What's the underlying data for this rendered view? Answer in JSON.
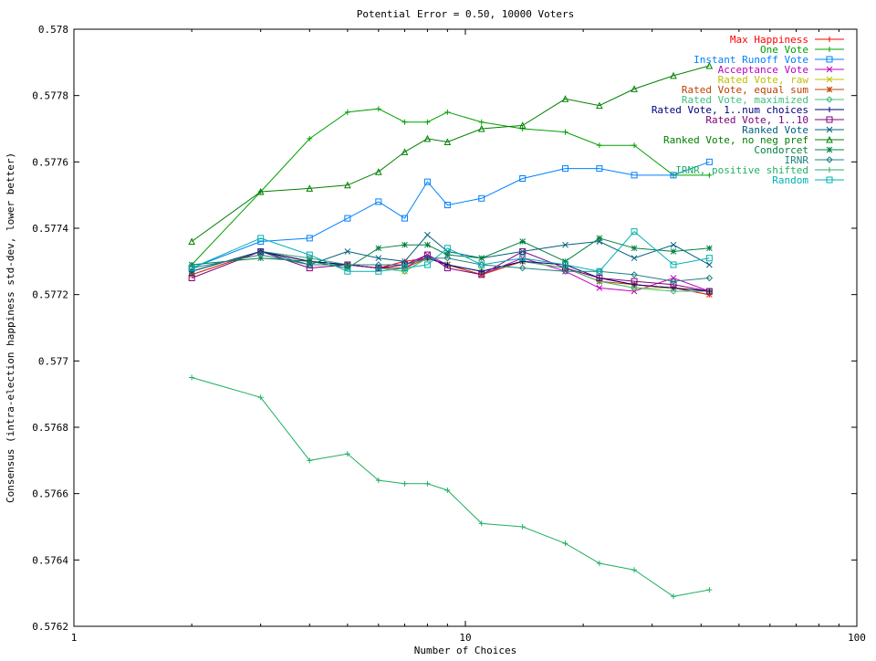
{
  "chart_data": {
    "type": "line",
    "title": "Potential Error = 0.50, 10000 Voters",
    "xlabel": "Number of Choices",
    "ylabel": "Consensus (intra-election happiness std-dev, lower better)",
    "xscale": "log",
    "xlim": [
      1,
      100
    ],
    "ylim": [
      0.5762,
      0.578
    ],
    "xticks": [
      1,
      10,
      100
    ],
    "xtick_labels": [
      "1",
      "10",
      "100"
    ],
    "yticks": [
      0.5762,
      0.5764,
      0.5766,
      0.5768,
      0.577,
      0.5772,
      0.5774,
      0.5776,
      0.5778,
      0.578
    ],
    "ytick_labels": [
      "0.5762",
      "0.5764",
      "0.5766",
      "0.5768",
      "0.577",
      "0.5772",
      "0.5774",
      "0.5776",
      "0.5778",
      "0.578"
    ],
    "grid": false,
    "legend_position": "top-right",
    "x": [
      2,
      3,
      4,
      5,
      6,
      7,
      8,
      9,
      11,
      14,
      18,
      22,
      27,
      34,
      42
    ],
    "series": [
      {
        "name": "Max Happiness",
        "color": "#ff0000",
        "marker": "plus",
        "values": [
          0.57726,
          0.57733,
          0.5773,
          0.57729,
          0.57728,
          0.5773,
          0.57731,
          0.57729,
          0.57726,
          0.5773,
          0.57728,
          0.57725,
          0.57723,
          0.57722,
          0.5772
        ]
      },
      {
        "name": "One Vote",
        "color": "#00a000",
        "marker": "plus",
        "values": [
          0.57729,
          0.57751,
          0.57767,
          0.57775,
          0.57776,
          0.57772,
          0.57772,
          0.57775,
          0.57772,
          0.5777,
          0.57769,
          0.57765,
          0.57765,
          0.57756,
          0.57756
        ]
      },
      {
        "name": "Instant Runoff Vote",
        "color": "#0080ff",
        "marker": "square",
        "values": [
          0.57728,
          0.57736,
          0.57737,
          0.57743,
          0.57748,
          0.57743,
          0.57754,
          0.57747,
          0.57749,
          0.57755,
          0.57758,
          0.57758,
          0.57756,
          0.57756,
          0.5776
        ]
      },
      {
        "name": "Acceptance Vote",
        "color": "#c000c0",
        "marker": "cross",
        "values": [
          0.57727,
          0.57733,
          0.57731,
          0.57729,
          0.57728,
          0.57728,
          0.57732,
          0.57729,
          0.57726,
          0.57731,
          0.57727,
          0.57722,
          0.57721,
          0.57725,
          0.57721
        ]
      },
      {
        "name": "Rated Vote, raw",
        "color": "#c0c000",
        "marker": "cross",
        "values": [
          0.57727,
          0.57733,
          0.5773,
          0.57729,
          0.57728,
          0.57727,
          0.57731,
          0.57729,
          0.57727,
          0.5773,
          0.57728,
          0.57724,
          0.57722,
          0.57722,
          0.57721
        ]
      },
      {
        "name": "Rated Vote, equal sum",
        "color": "#c04000",
        "marker": "star",
        "values": [
          0.57726,
          0.57733,
          0.5773,
          0.57729,
          0.57728,
          0.57728,
          0.57731,
          0.57729,
          0.57726,
          0.5773,
          0.57728,
          0.57724,
          0.57723,
          0.57722,
          0.5772
        ]
      },
      {
        "name": "Rated Vote, maximized",
        "color": "#40c080",
        "marker": "diamond",
        "values": [
          0.57727,
          0.57733,
          0.57731,
          0.57729,
          0.57728,
          0.57727,
          0.57731,
          0.57729,
          0.57727,
          0.5773,
          0.57728,
          0.57724,
          0.57722,
          0.57721,
          0.57721
        ]
      },
      {
        "name": "Rated Vote, 1..num choices",
        "color": "#000080",
        "marker": "plus",
        "values": [
          0.57727,
          0.57733,
          0.5773,
          0.57729,
          0.57728,
          0.57729,
          0.57731,
          0.57729,
          0.57727,
          0.5773,
          0.57729,
          0.57725,
          0.57723,
          0.57722,
          0.57721
        ]
      },
      {
        "name": "Rated Vote, 1..10",
        "color": "#800080",
        "marker": "square",
        "values": [
          0.57725,
          0.57733,
          0.57728,
          0.57729,
          0.57728,
          0.57729,
          0.57732,
          0.57728,
          0.57726,
          0.57733,
          0.57728,
          0.57725,
          0.57724,
          0.57723,
          0.57721
        ]
      },
      {
        "name": "Ranked Vote",
        "color": "#006080",
        "marker": "cross",
        "values": [
          0.57727,
          0.57733,
          0.57729,
          0.57733,
          0.57731,
          0.5773,
          0.57738,
          0.57733,
          0.57731,
          0.57733,
          0.57735,
          0.57736,
          0.57731,
          0.57735,
          0.57729
        ]
      },
      {
        "name": "Ranked Vote, no neg pref",
        "color": "#008000",
        "marker": "triangle",
        "values": [
          0.57736,
          0.57751,
          0.57752,
          0.57753,
          0.57757,
          0.57763,
          0.57767,
          0.57766,
          0.5777,
          0.57771,
          0.57779,
          0.57777,
          0.57782,
          0.57786,
          0.57789
        ]
      },
      {
        "name": "Condorcet",
        "color": "#008040",
        "marker": "star",
        "values": [
          0.57729,
          0.57731,
          0.5773,
          0.57728,
          0.57734,
          0.57735,
          0.57735,
          0.57732,
          0.57731,
          0.57736,
          0.5773,
          0.57737,
          0.57734,
          0.57733,
          0.57734
        ]
      },
      {
        "name": "IRNR",
        "color": "#208080",
        "marker": "diamond",
        "values": [
          0.57728,
          0.57732,
          0.57729,
          0.57729,
          0.57729,
          0.57729,
          0.57731,
          0.57731,
          0.57729,
          0.57728,
          0.57727,
          0.57727,
          0.57726,
          0.57724,
          0.57725
        ]
      },
      {
        "name": "IRNR, positive shifted",
        "color": "#20b060",
        "marker": "plus",
        "values": [
          0.57695,
          0.57689,
          0.5767,
          0.57672,
          0.57664,
          0.57663,
          0.57663,
          0.57661,
          0.57651,
          0.5765,
          0.57645,
          0.57639,
          0.57637,
          0.57629,
          0.57631
        ]
      },
      {
        "name": "Random",
        "color": "#00b0b0",
        "marker": "square",
        "values": [
          0.57728,
          0.57737,
          0.57732,
          0.57727,
          0.57727,
          0.57728,
          0.57729,
          0.57734,
          0.57729,
          0.57731,
          0.57729,
          0.57727,
          0.57739,
          0.57729,
          0.57731
        ]
      }
    ]
  }
}
